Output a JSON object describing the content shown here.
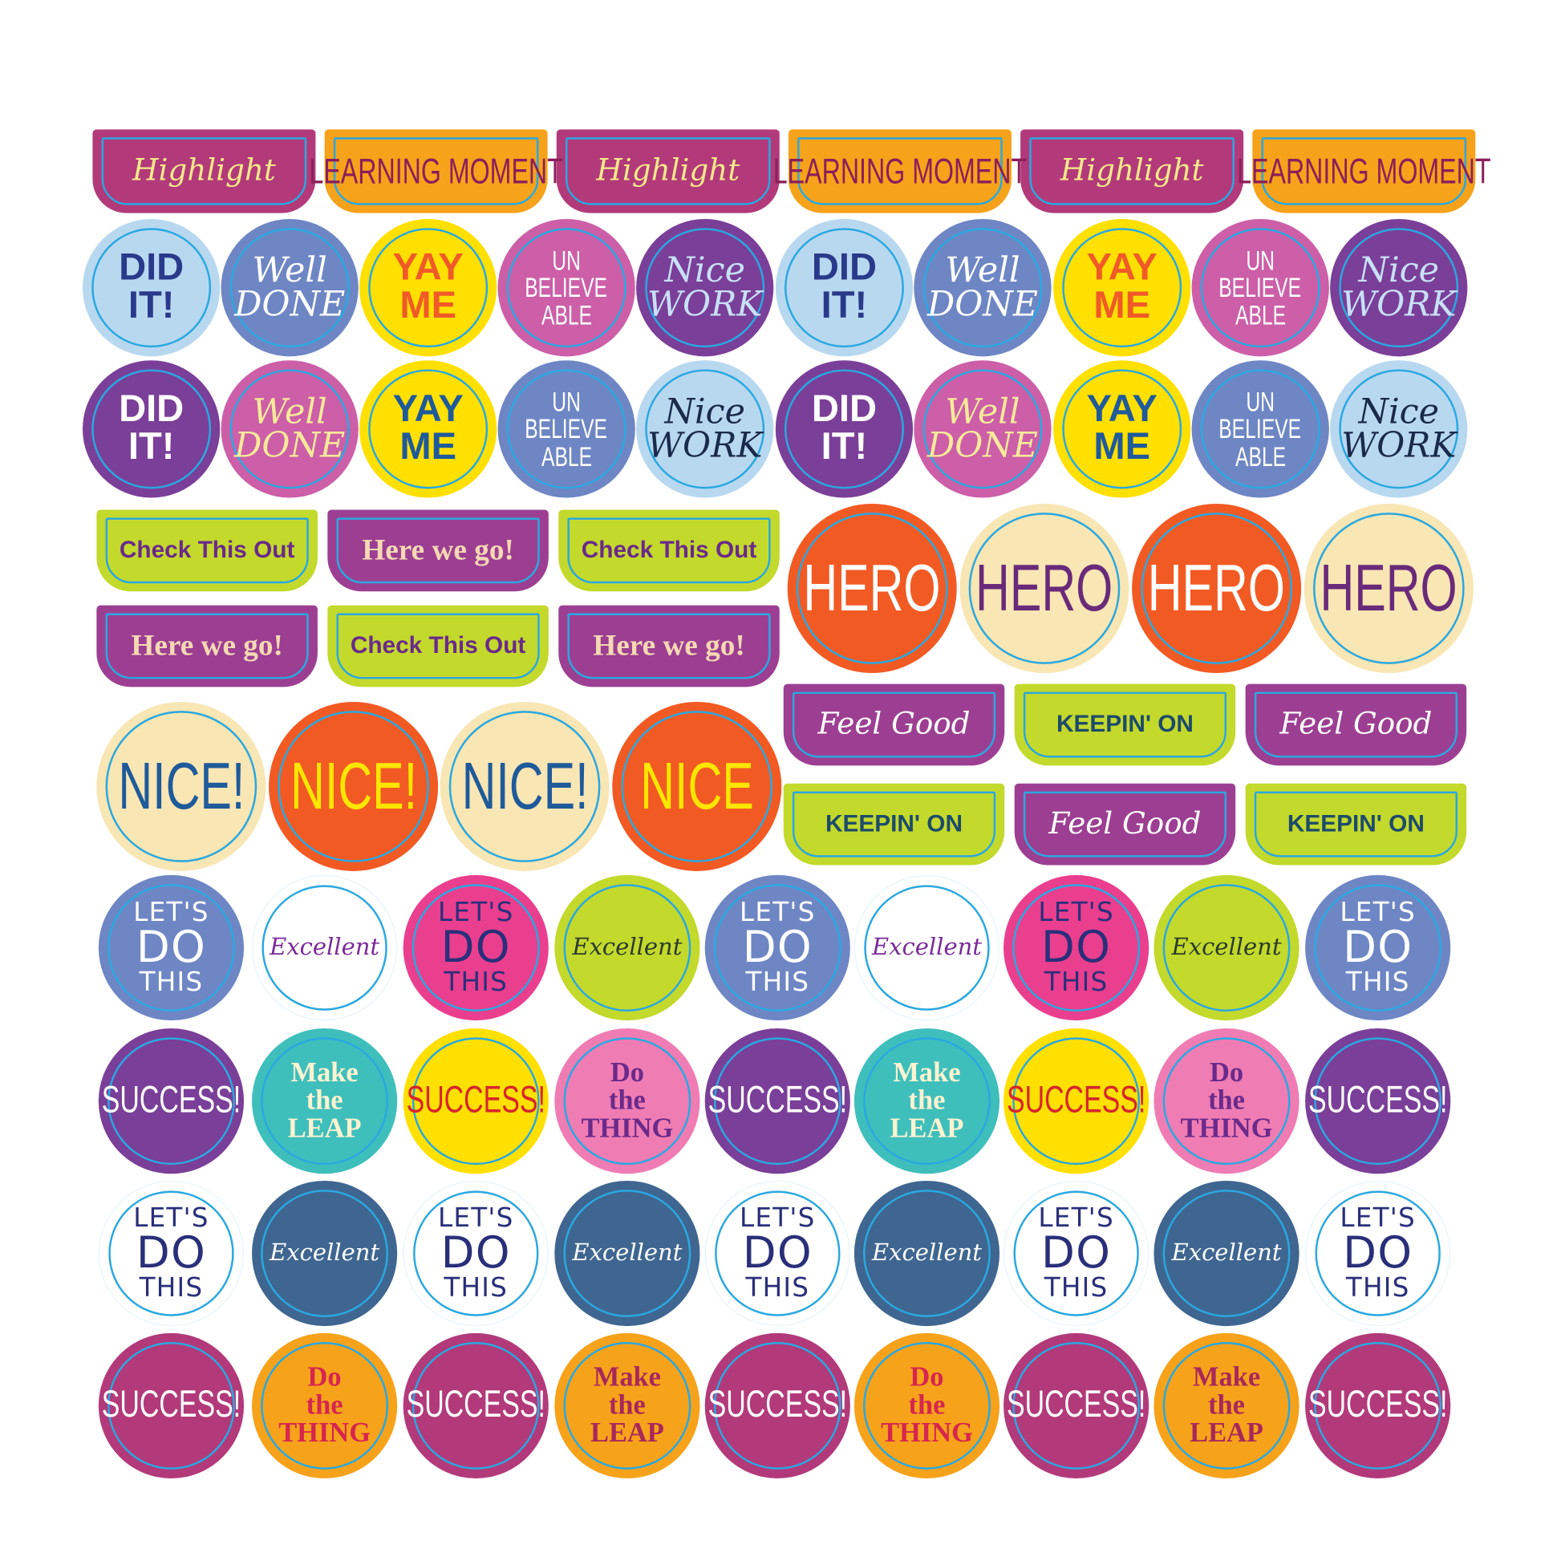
{
  "colors": {
    "ring": "#2aa8e0",
    "background": "#ffffff"
  },
  "tabs_top": [
    {
      "lines": [
        "Highlight"
      ],
      "bg": "#b23a7a",
      "fg": "#f7e98a",
      "style": "script"
    },
    {
      "lines": [
        "LEARNING MOMENT"
      ],
      "bg": "#f7a21b",
      "fg": "#8b1f5a",
      "style": "narrow"
    },
    {
      "lines": [
        "Highlight"
      ],
      "bg": "#b23a7a",
      "fg": "#f7e98a",
      "style": "script"
    },
    {
      "lines": [
        "LEARNING MOMENT"
      ],
      "bg": "#f7a21b",
      "fg": "#8b1f5a",
      "style": "narrow"
    },
    {
      "lines": [
        "Highlight"
      ],
      "bg": "#b23a7a",
      "fg": "#f7e98a",
      "style": "script"
    },
    {
      "lines": [
        "LEARNING MOMENT"
      ],
      "bg": "#f7a21b",
      "fg": "#8b1f5a",
      "style": "narrow"
    }
  ],
  "circles_row1": [
    {
      "lines": [
        "DID",
        "IT!"
      ],
      "bg": "#b8d8f0",
      "fg": "#2a3a8a",
      "style": "bold"
    },
    {
      "lines": [
        "Well",
        "DONE"
      ],
      "bg": "#6e86c4",
      "fg": "#ffffff",
      "style": "script"
    },
    {
      "lines": [
        "YAY",
        "ME"
      ],
      "bg": "#ffe000",
      "fg": "#f05a28",
      "style": "bold"
    },
    {
      "lines": [
        "UN",
        "BELIEVE",
        "ABLE"
      ],
      "bg": "#cc5fa8",
      "fg": "#ffffff",
      "style": "narrow"
    },
    {
      "lines": [
        "Nice",
        "WORK"
      ],
      "bg": "#7a3f98",
      "fg": "#c8e0f8",
      "style": "script"
    },
    {
      "lines": [
        "DID",
        "IT!"
      ],
      "bg": "#b8d8f0",
      "fg": "#2a3a8a",
      "style": "bold"
    },
    {
      "lines": [
        "Well",
        "DONE"
      ],
      "bg": "#6e86c4",
      "fg": "#ffffff",
      "style": "script"
    },
    {
      "lines": [
        "YAY",
        "ME"
      ],
      "bg": "#ffe000",
      "fg": "#f05a28",
      "style": "bold"
    },
    {
      "lines": [
        "UN",
        "BELIEVE",
        "ABLE"
      ],
      "bg": "#cc5fa8",
      "fg": "#ffffff",
      "style": "narrow"
    },
    {
      "lines": [
        "Nice",
        "WORK"
      ],
      "bg": "#7a3f98",
      "fg": "#c8e0f8",
      "style": "script"
    }
  ],
  "circles_row2": [
    {
      "lines": [
        "DID",
        "IT!"
      ],
      "bg": "#7a3f98",
      "fg": "#ffffff",
      "style": "bold"
    },
    {
      "lines": [
        "Well",
        "DONE"
      ],
      "bg": "#cc5fa8",
      "fg": "#f8ea9a",
      "style": "script"
    },
    {
      "lines": [
        "YAY",
        "ME"
      ],
      "bg": "#ffe000",
      "fg": "#1f5a9a",
      "style": "bold"
    },
    {
      "lines": [
        "UN",
        "BELIEVE",
        "ABLE"
      ],
      "bg": "#6e86c4",
      "fg": "#ffffff",
      "style": "narrow"
    },
    {
      "lines": [
        "Nice",
        "WORK"
      ],
      "bg": "#b8d8f0",
      "fg": "#1a2a4a",
      "style": "script"
    },
    {
      "lines": [
        "DID",
        "IT!"
      ],
      "bg": "#7a3f98",
      "fg": "#ffffff",
      "style": "bold"
    },
    {
      "lines": [
        "Well",
        "DONE"
      ],
      "bg": "#cc5fa8",
      "fg": "#f8ea9a",
      "style": "script"
    },
    {
      "lines": [
        "YAY",
        "ME"
      ],
      "bg": "#ffe000",
      "fg": "#1f5a9a",
      "style": "bold"
    },
    {
      "lines": [
        "UN",
        "BELIEVE",
        "ABLE"
      ],
      "bg": "#6e86c4",
      "fg": "#ffffff",
      "style": "narrow"
    },
    {
      "lines": [
        "Nice",
        "WORK"
      ],
      "bg": "#b8d8f0",
      "fg": "#1a2a4a",
      "style": "script"
    }
  ],
  "tabs_mid": [
    {
      "lines": [
        "Check This Out"
      ],
      "bg": "#c3d92c",
      "fg": "#6a2a8a",
      "style": "bold"
    },
    {
      "lines": [
        "Here we go!"
      ],
      "bg": "#9c3f92",
      "fg": "#f6d8b4",
      "style": "serif"
    },
    {
      "lines": [
        "Check This Out"
      ],
      "bg": "#c3d92c",
      "fg": "#6a2a8a",
      "style": "bold"
    },
    {
      "lines": [
        "Here we go!"
      ],
      "bg": "#9c3f92",
      "fg": "#f6d8b4",
      "style": "serif"
    },
    {
      "lines": [
        "Check This Out"
      ],
      "bg": "#c3d92c",
      "fg": "#6a2a8a",
      "style": "bold"
    },
    {
      "lines": [
        "Here we go!"
      ],
      "bg": "#9c3f92",
      "fg": "#f6d8b4",
      "style": "serif"
    }
  ],
  "hero": [
    {
      "lines": [
        "HERO"
      ],
      "bg": "#f25a24",
      "fg": "#ffffff",
      "style": "narrow"
    },
    {
      "lines": [
        "HERO"
      ],
      "bg": "#f8e6b4",
      "fg": "#6a2a7a",
      "style": "narrow"
    },
    {
      "lines": [
        "HERO"
      ],
      "bg": "#f25a24",
      "fg": "#ffffff",
      "style": "narrow"
    },
    {
      "lines": [
        "HERO"
      ],
      "bg": "#f8e6b4",
      "fg": "#6a2a7a",
      "style": "narrow"
    }
  ],
  "nice": [
    {
      "lines": [
        "NICE!"
      ],
      "bg": "#f8e6b4",
      "fg": "#1f5a9a",
      "style": "narrow"
    },
    {
      "lines": [
        "NICE!"
      ],
      "bg": "#f25a24",
      "fg": "#ffe600",
      "style": "narrow"
    },
    {
      "lines": [
        "NICE!"
      ],
      "bg": "#f8e6b4",
      "fg": "#1f5a9a",
      "style": "narrow"
    },
    {
      "lines": [
        "NICE"
      ],
      "bg": "#f25a24",
      "fg": "#ffe600",
      "style": "narrow"
    }
  ],
  "tabs_right": [
    {
      "lines": [
        "Feel Good"
      ],
      "bg": "#9c3f92",
      "fg": "#ffffff",
      "style": "script"
    },
    {
      "lines": [
        "KEEPIN' ON"
      ],
      "bg": "#c3d92c",
      "fg": "#1d4b6a",
      "style": "bold"
    },
    {
      "lines": [
        "Feel Good"
      ],
      "bg": "#9c3f92",
      "fg": "#ffffff",
      "style": "script"
    },
    {
      "lines": [
        "KEEPIN' ON"
      ],
      "bg": "#c3d92c",
      "fg": "#1d4b6a",
      "style": "bold"
    },
    {
      "lines": [
        "Feel Good"
      ],
      "bg": "#9c3f92",
      "fg": "#ffffff",
      "style": "script"
    },
    {
      "lines": [
        "KEEPIN' ON"
      ],
      "bg": "#c3d92c",
      "fg": "#1d4b6a",
      "style": "bold"
    }
  ],
  "circles_row3": [
    {
      "lines": [
        "LET'S",
        "DO",
        "THIS"
      ],
      "bg": "#6e86c4",
      "fg": "#ffffff",
      "style": "thin"
    },
    {
      "lines": [
        "Excellent"
      ],
      "bg": "#ffffff",
      "fg": "#7a2a9a",
      "style": "script"
    },
    {
      "lines": [
        "LET'S",
        "DO",
        "THIS"
      ],
      "bg": "#ea3f8e",
      "fg": "#2a2f7a",
      "style": "thin"
    },
    {
      "lines": [
        "Excellent"
      ],
      "bg": "#c3d92c",
      "fg": "#2a3a2a",
      "style": "script"
    },
    {
      "lines": [
        "LET'S",
        "DO",
        "THIS"
      ],
      "bg": "#6e86c4",
      "fg": "#ffffff",
      "style": "thin"
    },
    {
      "lines": [
        "Excellent"
      ],
      "bg": "#ffffff",
      "fg": "#7a2a9a",
      "style": "script"
    },
    {
      "lines": [
        "LET'S",
        "DO",
        "THIS"
      ],
      "bg": "#ea3f8e",
      "fg": "#2a2f7a",
      "style": "thin"
    },
    {
      "lines": [
        "Excellent"
      ],
      "bg": "#c3d92c",
      "fg": "#2a3a2a",
      "style": "script"
    },
    {
      "lines": [
        "LET'S",
        "DO",
        "THIS"
      ],
      "bg": "#6e86c4",
      "fg": "#ffffff",
      "style": "thin"
    }
  ],
  "circles_row4": [
    {
      "lines": [
        "SUCCESS!"
      ],
      "bg": "#7a3f98",
      "fg": "#ffffff",
      "style": "narrow"
    },
    {
      "lines": [
        "Make",
        "the",
        "LEAP"
      ],
      "bg": "#3fbfbc",
      "fg": "#fdf3d0",
      "style": "serif"
    },
    {
      "lines": [
        "SUCCESS!"
      ],
      "bg": "#ffe000",
      "fg": "#d6262e",
      "style": "narrow"
    },
    {
      "lines": [
        "Do",
        "the",
        "THING"
      ],
      "bg": "#f07cb4",
      "fg": "#6a2a8a",
      "style": "serif"
    },
    {
      "lines": [
        "SUCCESS!"
      ],
      "bg": "#7a3f98",
      "fg": "#ffffff",
      "style": "narrow"
    },
    {
      "lines": [
        "Make",
        "the",
        "LEAP"
      ],
      "bg": "#3fbfbc",
      "fg": "#fdf3d0",
      "style": "serif"
    },
    {
      "lines": [
        "SUCCESS!"
      ],
      "bg": "#ffe000",
      "fg": "#d6262e",
      "style": "narrow"
    },
    {
      "lines": [
        "Do",
        "the",
        "THING"
      ],
      "bg": "#f07cb4",
      "fg": "#6a2a8a",
      "style": "serif"
    },
    {
      "lines": [
        "SUCCESS!"
      ],
      "bg": "#7a3f98",
      "fg": "#ffffff",
      "style": "narrow"
    }
  ],
  "circles_row5": [
    {
      "lines": [
        "LET'S",
        "DO",
        "THIS"
      ],
      "bg": "#ffffff",
      "fg": "#2a2f7a",
      "style": "thin"
    },
    {
      "lines": [
        "Excellent"
      ],
      "bg": "#3f6690",
      "fg": "#ffffff",
      "style": "script"
    },
    {
      "lines": [
        "LET'S",
        "DO",
        "THIS"
      ],
      "bg": "#ffffff",
      "fg": "#2a2f7a",
      "style": "thin"
    },
    {
      "lines": [
        "Excellent"
      ],
      "bg": "#3f6690",
      "fg": "#ffffff",
      "style": "script"
    },
    {
      "lines": [
        "LET'S",
        "DO",
        "THIS"
      ],
      "bg": "#ffffff",
      "fg": "#2a2f7a",
      "style": "thin"
    },
    {
      "lines": [
        "Excellent"
      ],
      "bg": "#3f6690",
      "fg": "#ffffff",
      "style": "script"
    },
    {
      "lines": [
        "LET'S",
        "DO",
        "THIS"
      ],
      "bg": "#ffffff",
      "fg": "#2a2f7a",
      "style": "thin"
    },
    {
      "lines": [
        "Excellent"
      ],
      "bg": "#3f6690",
      "fg": "#ffffff",
      "style": "script"
    },
    {
      "lines": [
        "LET'S",
        "DO",
        "THIS"
      ],
      "bg": "#ffffff",
      "fg": "#2a2f7a",
      "style": "thin"
    }
  ],
  "circles_row6": [
    {
      "lines": [
        "SUCCESS!"
      ],
      "bg": "#b23a7a",
      "fg": "#ffffff",
      "style": "narrow"
    },
    {
      "lines": [
        "Do",
        "the",
        "THING"
      ],
      "bg": "#f7a21b",
      "fg": "#d6264e",
      "style": "serif"
    },
    {
      "lines": [
        "SUCCESS!"
      ],
      "bg": "#b23a7a",
      "fg": "#ffffff",
      "style": "narrow"
    },
    {
      "lines": [
        "Make",
        "the",
        "LEAP"
      ],
      "bg": "#f7a21b",
      "fg": "#a8285a",
      "style": "serif"
    },
    {
      "lines": [
        "SUCCESS!"
      ],
      "bg": "#b23a7a",
      "fg": "#ffffff",
      "style": "narrow"
    },
    {
      "lines": [
        "Do",
        "the",
        "THING"
      ],
      "bg": "#f7a21b",
      "fg": "#d6264e",
      "style": "serif"
    },
    {
      "lines": [
        "SUCCESS!"
      ],
      "bg": "#b23a7a",
      "fg": "#ffffff",
      "style": "narrow"
    },
    {
      "lines": [
        "Make",
        "the",
        "LEAP"
      ],
      "bg": "#f7a21b",
      "fg": "#a8285a",
      "style": "serif"
    },
    {
      "lines": [
        "SUCCESS!"
      ],
      "bg": "#b23a7a",
      "fg": "#ffffff",
      "style": "narrow"
    }
  ]
}
